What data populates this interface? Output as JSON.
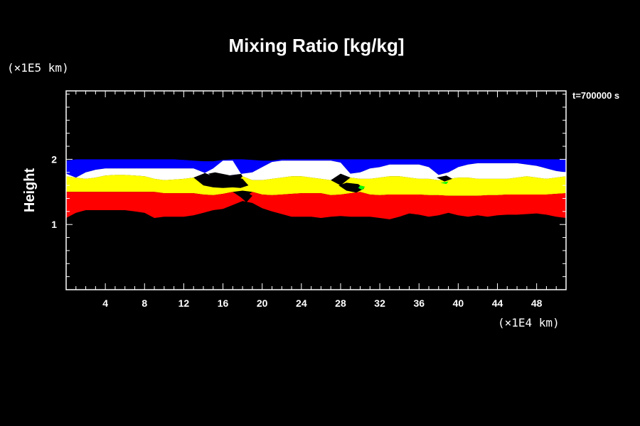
{
  "chart_data": {
    "type": "heatmap",
    "title": "Mixing Ratio [kg/kg]",
    "ylabel": "Height",
    "xlabel": "",
    "x_unit_label": "(×1E4 km)",
    "y_unit_label": "(×1E5 km)",
    "time_label": "t=700000 s",
    "xlim": [
      0,
      51
    ],
    "ylim": [
      0,
      3.05
    ],
    "x_ticks": [
      4,
      8,
      12,
      16,
      20,
      24,
      28,
      32,
      36,
      40,
      44,
      48
    ],
    "y_ticks": [
      1,
      2
    ],
    "x_minor_step": 1,
    "y_minor_step": 0.2,
    "grid": false,
    "colors": {
      "background": "#000000",
      "blue": "#0000ff",
      "white": "#ffffff",
      "yellow": "#ffff00",
      "red": "#ff0000",
      "green": "#00ff00"
    },
    "x": [
      0,
      1,
      2,
      3,
      4,
      5,
      6,
      7,
      8,
      9,
      10,
      11,
      12,
      13,
      14,
      15,
      16,
      17,
      18,
      19,
      20,
      21,
      22,
      23,
      24,
      25,
      26,
      27,
      28,
      29,
      30,
      31,
      32,
      33,
      34,
      35,
      36,
      37,
      38,
      39,
      40,
      41,
      42,
      43,
      44,
      45,
      46,
      47,
      48,
      49,
      50,
      51
    ],
    "layers": [
      {
        "color": "blue",
        "bottom": [
          1.78,
          1.72,
          1.8,
          1.84,
          1.86,
          1.86,
          1.86,
          1.86,
          1.86,
          1.86,
          1.86,
          1.86,
          1.86,
          1.86,
          1.8,
          1.74,
          1.74,
          1.76,
          1.78,
          1.8,
          1.88,
          1.96,
          1.98,
          1.98,
          1.98,
          1.98,
          1.98,
          1.98,
          1.95,
          1.78,
          1.8,
          1.86,
          1.88,
          1.92,
          1.92,
          1.92,
          1.92,
          1.88,
          1.76,
          1.8,
          1.88,
          1.92,
          1.94,
          1.94,
          1.94,
          1.94,
          1.94,
          1.92,
          1.9,
          1.86,
          1.82,
          1.8
        ],
        "top": [
          1.98,
          2.0,
          2.0,
          2.0,
          2.0,
          2.0,
          2.0,
          2.0,
          2.0,
          2.0,
          2.0,
          2.0,
          1.99,
          1.98,
          1.97,
          1.97,
          1.99,
          2.0,
          2.0,
          1.99,
          1.98,
          1.98,
          2.0,
          2.0,
          2.0,
          2.0,
          2.0,
          2.0,
          2.0,
          2.0,
          2.0,
          2.0,
          2.0,
          2.0,
          2.0,
          2.0,
          2.0,
          2.0,
          2.0,
          2.0,
          2.0,
          2.0,
          2.0,
          2.0,
          2.0,
          2.0,
          2.0,
          2.0,
          2.0,
          2.0,
          2.0,
          2.0
        ]
      },
      {
        "color": "white",
        "bottom": [
          1.74,
          1.72,
          1.7,
          1.72,
          1.75,
          1.76,
          1.76,
          1.75,
          1.74,
          1.7,
          1.68,
          1.69,
          1.7,
          1.72,
          1.78,
          1.86,
          1.98,
          1.98,
          1.74,
          1.68,
          1.68,
          1.7,
          1.72,
          1.74,
          1.74,
          1.72,
          1.7,
          1.68,
          1.78,
          1.72,
          1.7,
          1.7,
          1.72,
          1.74,
          1.74,
          1.72,
          1.7,
          1.7,
          1.68,
          1.7,
          1.72,
          1.72,
          1.7,
          1.7,
          1.7,
          1.7,
          1.72,
          1.74,
          1.72,
          1.7,
          1.72,
          1.74
        ],
        "top": [
          1.78,
          1.72,
          1.8,
          1.84,
          1.86,
          1.86,
          1.86,
          1.86,
          1.86,
          1.86,
          1.86,
          1.86,
          1.86,
          1.86,
          1.8,
          1.74,
          1.74,
          1.76,
          1.78,
          1.8,
          1.88,
          1.96,
          1.98,
          1.98,
          1.98,
          1.98,
          1.98,
          1.98,
          1.95,
          1.78,
          1.8,
          1.86,
          1.88,
          1.92,
          1.92,
          1.92,
          1.92,
          1.88,
          1.76,
          1.8,
          1.88,
          1.92,
          1.94,
          1.94,
          1.94,
          1.94,
          1.94,
          1.92,
          1.9,
          1.86,
          1.82,
          1.8
        ]
      },
      {
        "color": "yellow",
        "bottom": [
          1.5,
          1.5,
          1.5,
          1.5,
          1.5,
          1.5,
          1.5,
          1.5,
          1.5,
          1.5,
          1.48,
          1.48,
          1.48,
          1.48,
          1.46,
          1.45,
          1.47,
          1.5,
          1.52,
          1.5,
          1.46,
          1.45,
          1.46,
          1.47,
          1.48,
          1.48,
          1.48,
          1.45,
          1.46,
          1.48,
          1.5,
          1.46,
          1.45,
          1.46,
          1.46,
          1.46,
          1.46,
          1.45,
          1.45,
          1.44,
          1.44,
          1.44,
          1.44,
          1.45,
          1.45,
          1.46,
          1.46,
          1.46,
          1.46,
          1.46,
          1.47,
          1.48
        ],
        "top": [
          1.74,
          1.72,
          1.7,
          1.72,
          1.75,
          1.76,
          1.76,
          1.75,
          1.74,
          1.7,
          1.68,
          1.69,
          1.7,
          1.72,
          1.6,
          1.57,
          1.56,
          1.57,
          1.74,
          1.68,
          1.68,
          1.7,
          1.72,
          1.74,
          1.74,
          1.72,
          1.7,
          1.68,
          1.6,
          1.72,
          1.7,
          1.7,
          1.72,
          1.74,
          1.74,
          1.72,
          1.7,
          1.7,
          1.68,
          1.7,
          1.72,
          1.72,
          1.7,
          1.7,
          1.7,
          1.7,
          1.72,
          1.74,
          1.72,
          1.7,
          1.72,
          1.74
        ]
      },
      {
        "color": "red",
        "bottom": [
          1.1,
          1.18,
          1.22,
          1.22,
          1.22,
          1.22,
          1.22,
          1.2,
          1.18,
          1.1,
          1.12,
          1.12,
          1.12,
          1.14,
          1.18,
          1.22,
          1.24,
          1.3,
          1.36,
          1.33,
          1.25,
          1.2,
          1.16,
          1.12,
          1.12,
          1.12,
          1.1,
          1.12,
          1.13,
          1.12,
          1.12,
          1.12,
          1.1,
          1.08,
          1.12,
          1.17,
          1.15,
          1.12,
          1.14,
          1.18,
          1.14,
          1.12,
          1.14,
          1.12,
          1.14,
          1.15,
          1.15,
          1.16,
          1.17,
          1.15,
          1.12,
          1.1
        ],
        "top": [
          1.5,
          1.5,
          1.5,
          1.5,
          1.5,
          1.5,
          1.5,
          1.5,
          1.5,
          1.5,
          1.48,
          1.48,
          1.48,
          1.48,
          1.46,
          1.45,
          1.47,
          1.5,
          1.4,
          1.5,
          1.46,
          1.45,
          1.46,
          1.47,
          1.48,
          1.48,
          1.48,
          1.45,
          1.46,
          1.48,
          1.5,
          1.46,
          1.45,
          1.46,
          1.46,
          1.46,
          1.46,
          1.45,
          1.45,
          1.44,
          1.44,
          1.44,
          1.44,
          1.45,
          1.45,
          1.46,
          1.46,
          1.46,
          1.46,
          1.46,
          1.47,
          1.48
        ]
      }
    ],
    "black_patches": [
      {
        "x": [
          14.5,
          16.0,
          17.0,
          17.8,
          18.6,
          18.0,
          16.5,
          15.2
        ],
        "y": [
          1.78,
          1.62,
          1.57,
          1.56,
          1.6,
          1.7,
          1.76,
          1.8
        ]
      },
      {
        "x": [
          27.8,
          28.6,
          29.6,
          30.4,
          29.8,
          28.6
        ],
        "y": [
          1.6,
          1.52,
          1.49,
          1.55,
          1.62,
          1.64
        ]
      },
      {
        "x": [
          37.8,
          38.6,
          39.4,
          38.8
        ],
        "y": [
          1.72,
          1.66,
          1.7,
          1.75
        ]
      },
      {
        "x": [
          17.8,
          18.4,
          19.0,
          18.4
        ],
        "y": [
          1.42,
          1.34,
          1.44,
          1.5
        ]
      }
    ],
    "green_patches": [
      {
        "x": [
          29.8,
          30.2,
          30.5,
          30.0
        ],
        "y": [
          1.56,
          1.53,
          1.58,
          1.6
        ]
      },
      {
        "x": [
          38.2,
          38.8,
          39.0
        ],
        "y": [
          1.64,
          1.62,
          1.66
        ]
      }
    ]
  }
}
